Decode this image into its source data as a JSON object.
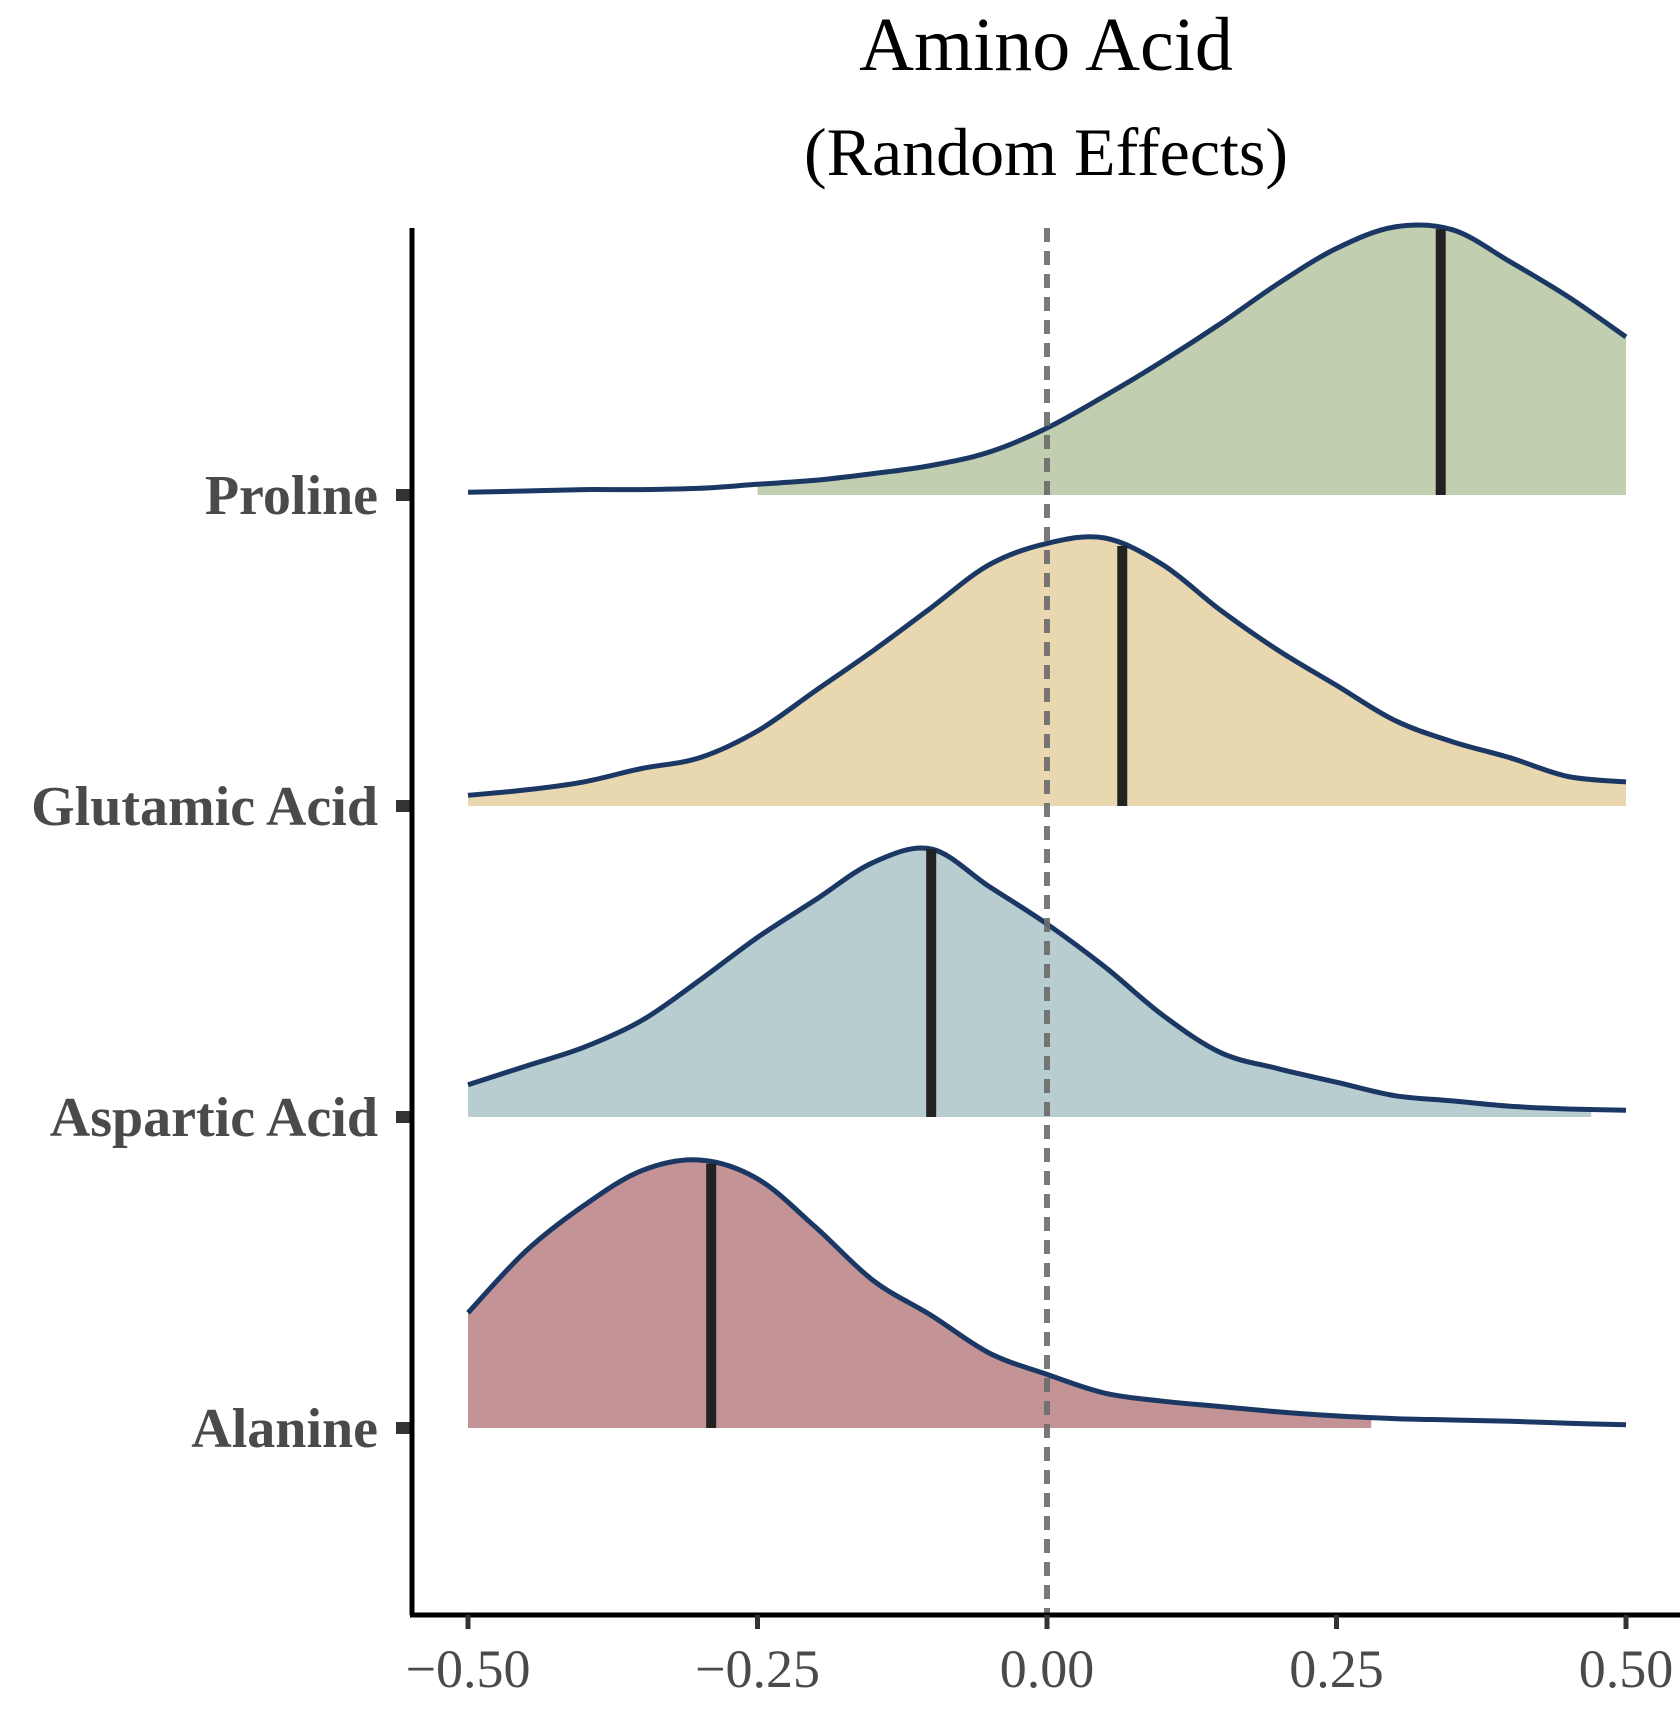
{
  "chart_data": {
    "type": "ridgeline",
    "title": "Amino Acid",
    "subtitle": "(Random Effects)",
    "xlabel": "",
    "ylabel": "",
    "xlim": [
      -0.55,
      0.55
    ],
    "x_ticks": [
      -0.5,
      -0.25,
      0,
      0.25,
      0.5
    ],
    "x_tick_labels": [
      "−0.50",
      "−0.25",
      "0.00",
      "0.25",
      "0.50"
    ],
    "reference_line": 0,
    "grid": false,
    "legend": "none",
    "series": [
      {
        "name": "Alanine",
        "color": "#c49396",
        "median": -0.29,
        "fill_range": [
          -0.5,
          0.28
        ],
        "x": [
          -0.5,
          -0.45,
          -0.4,
          -0.35,
          -0.3,
          -0.25,
          -0.2,
          -0.15,
          -0.1,
          -0.05,
          0.0,
          0.05,
          0.1,
          0.15,
          0.2,
          0.25,
          0.3,
          0.35,
          0.4,
          0.45,
          0.5
        ],
        "density": [
          0.43,
          0.66,
          0.83,
          0.96,
          1.0,
          0.93,
          0.75,
          0.55,
          0.42,
          0.28,
          0.2,
          0.13,
          0.1,
          0.08,
          0.06,
          0.045,
          0.035,
          0.03,
          0.025,
          0.018,
          0.012
        ]
      },
      {
        "name": "Aspartic Acid",
        "color": "#b8cdd0",
        "median": -0.1,
        "fill_range": [
          -0.5,
          0.47
        ],
        "x": [
          -0.5,
          -0.45,
          -0.4,
          -0.35,
          -0.3,
          -0.25,
          -0.2,
          -0.15,
          -0.1,
          -0.05,
          0.0,
          0.05,
          0.1,
          0.15,
          0.2,
          0.25,
          0.3,
          0.35,
          0.4,
          0.45,
          0.5
        ],
        "density": [
          0.12,
          0.19,
          0.26,
          0.36,
          0.51,
          0.67,
          0.81,
          0.95,
          1.0,
          0.86,
          0.72,
          0.56,
          0.38,
          0.24,
          0.18,
          0.13,
          0.08,
          0.06,
          0.04,
          0.03,
          0.025
        ]
      },
      {
        "name": "Glutamic Acid",
        "color": "#e9d7b0",
        "median": 0.065,
        "fill_range": [
          -0.5,
          0.5
        ],
        "x": [
          -0.5,
          -0.45,
          -0.4,
          -0.35,
          -0.3,
          -0.25,
          -0.2,
          -0.15,
          -0.1,
          -0.05,
          0.0,
          0.05,
          0.1,
          0.15,
          0.2,
          0.25,
          0.3,
          0.35,
          0.4,
          0.45,
          0.5
        ],
        "density": [
          0.04,
          0.06,
          0.09,
          0.14,
          0.18,
          0.28,
          0.43,
          0.58,
          0.74,
          0.9,
          0.98,
          1.0,
          0.9,
          0.73,
          0.58,
          0.45,
          0.32,
          0.24,
          0.18,
          0.11,
          0.09
        ]
      },
      {
        "name": "Proline",
        "color": "#c1cfb0",
        "median": 0.34,
        "fill_range": [
          -0.25,
          0.5
        ],
        "x": [
          -0.5,
          -0.45,
          -0.4,
          -0.35,
          -0.3,
          -0.25,
          -0.2,
          -0.15,
          -0.1,
          -0.05,
          0.0,
          0.05,
          0.1,
          0.15,
          0.2,
          0.25,
          0.3,
          0.35,
          0.4,
          0.45,
          0.5
        ],
        "density": [
          0.01,
          0.015,
          0.02,
          0.02,
          0.025,
          0.04,
          0.055,
          0.08,
          0.11,
          0.16,
          0.25,
          0.37,
          0.5,
          0.64,
          0.79,
          0.92,
          1.0,
          0.99,
          0.87,
          0.74,
          0.59
        ]
      }
    ]
  }
}
